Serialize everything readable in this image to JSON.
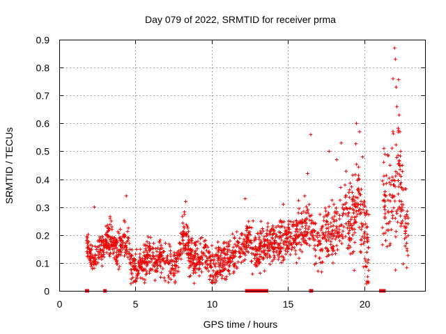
{
  "chart_data": {
    "type": "scatter",
    "title": "Day 079 of 2022, SRMTID for receiver prma",
    "xlabel": "GPS time / hours",
    "ylabel": "SRMTID / TECUs",
    "xlim": [
      0,
      24
    ],
    "ylim": [
      0,
      0.9
    ],
    "xticks": [
      0,
      5,
      10,
      15,
      20
    ],
    "yticks": [
      0,
      0.1,
      0.2,
      0.3,
      0.4,
      0.5,
      0.6,
      0.7,
      0.8,
      0.9
    ],
    "grid": true,
    "marker": "+",
    "color": "#ee0000",
    "series": [
      {
        "name": "prma",
        "trend": [
          [
            1.8,
            0.16
          ],
          [
            2.2,
            0.12
          ],
          [
            2.6,
            0.14
          ],
          [
            3.0,
            0.17
          ],
          [
            3.4,
            0.2
          ],
          [
            3.8,
            0.13
          ],
          [
            4.3,
            0.2
          ],
          [
            4.7,
            0.1
          ],
          [
            5.2,
            0.08
          ],
          [
            5.8,
            0.12
          ],
          [
            6.4,
            0.11
          ],
          [
            7.0,
            0.12
          ],
          [
            7.6,
            0.08
          ],
          [
            8.2,
            0.2
          ],
          [
            8.8,
            0.11
          ],
          [
            9.4,
            0.14
          ],
          [
            10.0,
            0.08
          ],
          [
            10.6,
            0.1
          ],
          [
            11.2,
            0.12
          ],
          [
            11.8,
            0.14
          ],
          [
            12.4,
            0.18
          ],
          [
            13.0,
            0.15
          ],
          [
            13.6,
            0.17
          ],
          [
            14.2,
            0.17
          ],
          [
            14.8,
            0.18
          ],
          [
            15.4,
            0.21
          ],
          [
            16.0,
            0.22
          ],
          [
            16.4,
            0.25
          ],
          [
            16.8,
            0.18
          ],
          [
            17.4,
            0.18
          ],
          [
            17.8,
            0.2
          ],
          [
            18.3,
            0.22
          ],
          [
            18.7,
            0.28
          ],
          [
            19.2,
            0.22
          ],
          [
            19.6,
            0.35
          ],
          [
            20.0,
            0.22
          ],
          [
            20.2,
            0.15
          ],
          [
            21.3,
            0.3
          ],
          [
            21.7,
            0.35
          ],
          [
            22.0,
            0.4
          ],
          [
            22.3,
            0.42
          ],
          [
            22.6,
            0.25
          ],
          [
            22.9,
            0.2
          ]
        ],
        "spread": [
          [
            1.8,
            0.04
          ],
          [
            4.0,
            0.06
          ],
          [
            8.0,
            0.06
          ],
          [
            12.0,
            0.06
          ],
          [
            16.0,
            0.08
          ],
          [
            18.5,
            0.1
          ],
          [
            19.5,
            0.15
          ],
          [
            21.0,
            0.14
          ],
          [
            22.2,
            0.22
          ],
          [
            23.0,
            0.12
          ]
        ],
        "gaps": [
          [
            20.3,
            21.2
          ]
        ],
        "points_per_hour": 90,
        "highlights": [
          [
            2.3,
            0.3
          ],
          [
            4.4,
            0.34
          ],
          [
            8.3,
            0.32
          ],
          [
            12.2,
            0.33
          ],
          [
            14.7,
            0.31
          ],
          [
            16.1,
            0.34
          ],
          [
            16.3,
            0.42
          ],
          [
            16.5,
            0.56
          ],
          [
            17.7,
            0.5
          ],
          [
            18.2,
            0.47
          ],
          [
            18.5,
            0.53
          ],
          [
            19.5,
            0.6
          ],
          [
            19.7,
            0.57
          ],
          [
            19.9,
            0.48
          ],
          [
            21.3,
            0.51
          ],
          [
            21.9,
            0.76
          ],
          [
            22.0,
            0.87
          ],
          [
            22.05,
            0.83
          ],
          [
            22.1,
            0.73
          ],
          [
            22.15,
            0.66
          ],
          [
            22.3,
            0.63
          ],
          [
            22.35,
            0.57
          ],
          [
            22.4,
            0.5
          ],
          [
            22.5,
            0.45
          ]
        ],
        "zero_hours": [
          1.8,
          1.85,
          3.0,
          12.3,
          12.4,
          12.5,
          12.6,
          12.7,
          12.8,
          12.9,
          13.0,
          13.1,
          13.3,
          13.4,
          13.5,
          13.6,
          16.5,
          16.55,
          21.1,
          21.2,
          21.3
        ]
      }
    ]
  }
}
